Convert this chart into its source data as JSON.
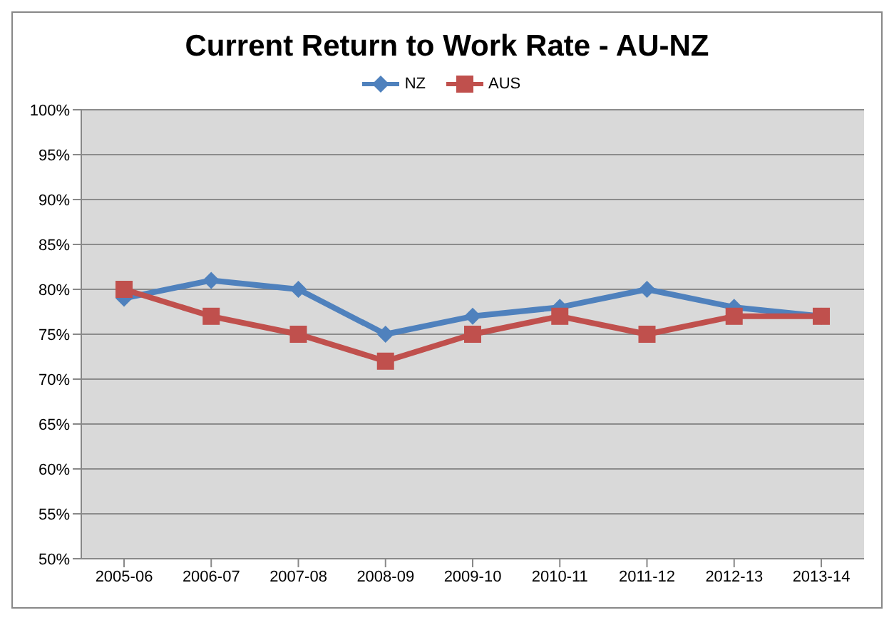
{
  "chart_data": {
    "type": "line",
    "title": "Current Return to Work Rate - AU-NZ",
    "categories": [
      "2005-06",
      "2006-07",
      "2007-08",
      "2008-09",
      "2009-10",
      "2010-11",
      "2011-12",
      "2012-13",
      "2013-14"
    ],
    "series": [
      {
        "name": "NZ",
        "color": "#4f81bd",
        "marker": "diamond",
        "values": [
          79,
          81,
          80,
          75,
          77,
          78,
          80,
          78,
          77
        ]
      },
      {
        "name": "AUS",
        "color": "#c0504d",
        "marker": "square",
        "values": [
          80,
          77,
          75,
          72,
          75,
          77,
          75,
          77,
          77
        ]
      }
    ],
    "ylim": [
      50,
      100
    ],
    "yticks": [
      {
        "value": 50,
        "label": "50%"
      },
      {
        "value": 55,
        "label": "55%"
      },
      {
        "value": 60,
        "label": "60%"
      },
      {
        "value": 65,
        "label": "65%"
      },
      {
        "value": 70,
        "label": "70%"
      },
      {
        "value": 75,
        "label": "75%"
      },
      {
        "value": 80,
        "label": "80%"
      },
      {
        "value": 85,
        "label": "85%"
      },
      {
        "value": 90,
        "label": "90%"
      },
      {
        "value": 95,
        "label": "95%"
      },
      {
        "value": 100,
        "label": "100%"
      }
    ],
    "grid": "y",
    "legend": "top",
    "line_style": "solid"
  }
}
